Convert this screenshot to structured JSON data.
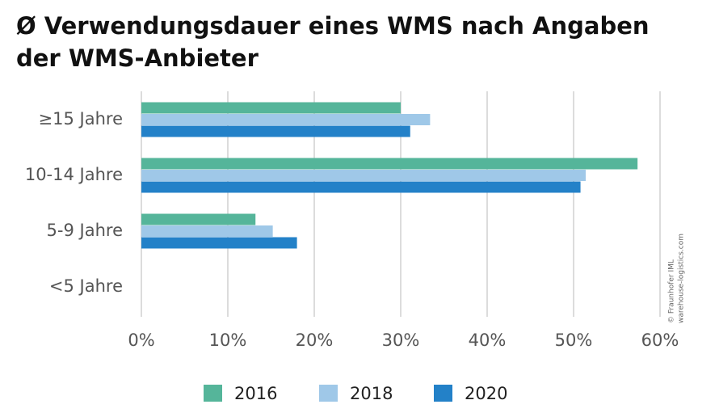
{
  "chart_data": {
    "type": "bar",
    "orientation": "horizontal",
    "title_lines": [
      "Ø Verwendungsdauer eines WMS nach Angaben",
      "der WMS-Anbieter"
    ],
    "categories": [
      "≥15 Jahre",
      "10-14 Jahre",
      "5-9 Jahre",
      "<5 Jahre"
    ],
    "series": [
      {
        "name": "2016",
        "color": "#55b59a",
        "values": [
          30.0,
          57.4,
          13.2,
          0
        ]
      },
      {
        "name": "2018",
        "color": "#9fc8e8",
        "values": [
          33.4,
          51.4,
          15.2,
          0
        ]
      },
      {
        "name": "2020",
        "color": "#2381c8",
        "values": [
          31.1,
          50.8,
          18.0,
          0
        ]
      }
    ],
    "xlim": [
      0,
      60
    ],
    "xticks": [
      {
        "value": 0,
        "label": "0%"
      },
      {
        "value": 10,
        "label": "10%"
      },
      {
        "value": 20,
        "label": "20%"
      },
      {
        "value": 30,
        "label": "30%"
      },
      {
        "value": 40,
        "label": "40%"
      },
      {
        "value": 50,
        "label": "50%"
      },
      {
        "value": 60,
        "label": "60%"
      }
    ],
    "grid": true,
    "legend": "bottom",
    "annotations": [
      "© Fraunhofer IML",
      "warehouse-logistics.com"
    ]
  }
}
